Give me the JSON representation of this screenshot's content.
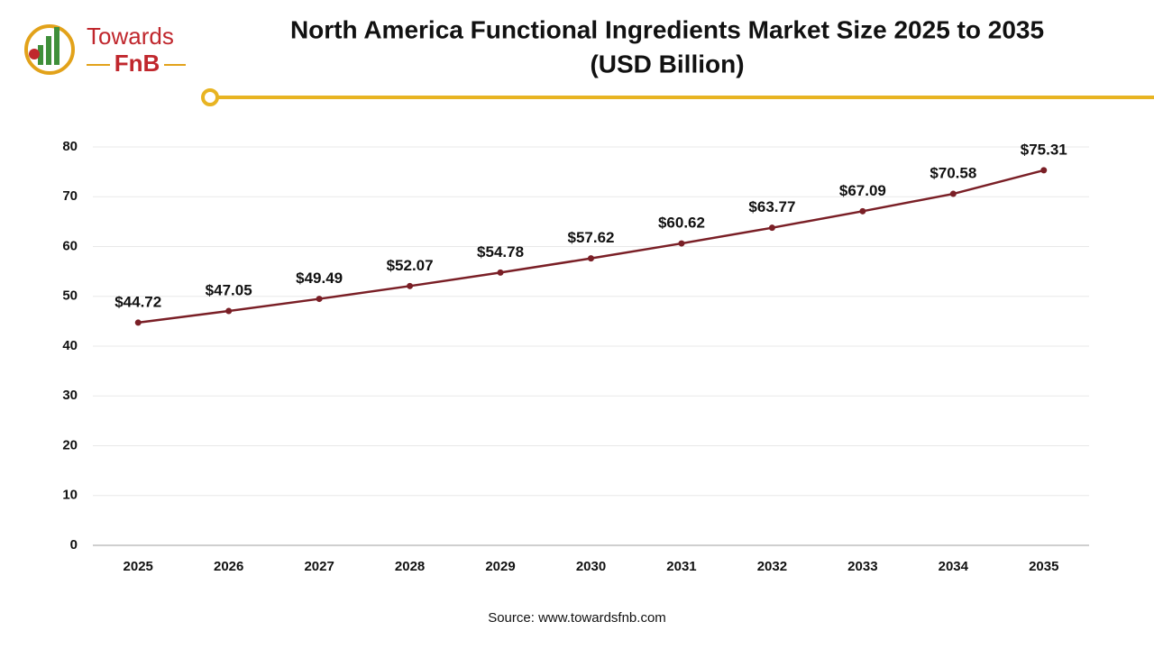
{
  "logo": {
    "line1": "Towards",
    "line2": "FnB"
  },
  "chart_data": {
    "type": "line",
    "title": [
      "North America Functional Ingredients Market Size 2025 to 2035",
      "(USD Billion)"
    ],
    "categories": [
      "2025",
      "2026",
      "2027",
      "2028",
      "2029",
      "2030",
      "2031",
      "2032",
      "2033",
      "2034",
      "2035"
    ],
    "series": [
      {
        "name": "Market Size",
        "color": "#7a1f26",
        "values": [
          44.72,
          47.05,
          49.49,
          52.07,
          54.78,
          57.62,
          60.62,
          63.77,
          67.09,
          70.58,
          75.31
        ],
        "value_labels": [
          "$44.72",
          "$47.05",
          "$49.49",
          "$52.07",
          "$54.78",
          "$57.62",
          "$60.62",
          "$63.77",
          "$67.09",
          "$70.58",
          "$75.31"
        ]
      }
    ],
    "ylim": [
      0,
      80
    ],
    "yticks": [
      0,
      10,
      20,
      30,
      40,
      50,
      60,
      70,
      80
    ],
    "grid": true,
    "source": "Source: www.towardsfnb.com"
  }
}
